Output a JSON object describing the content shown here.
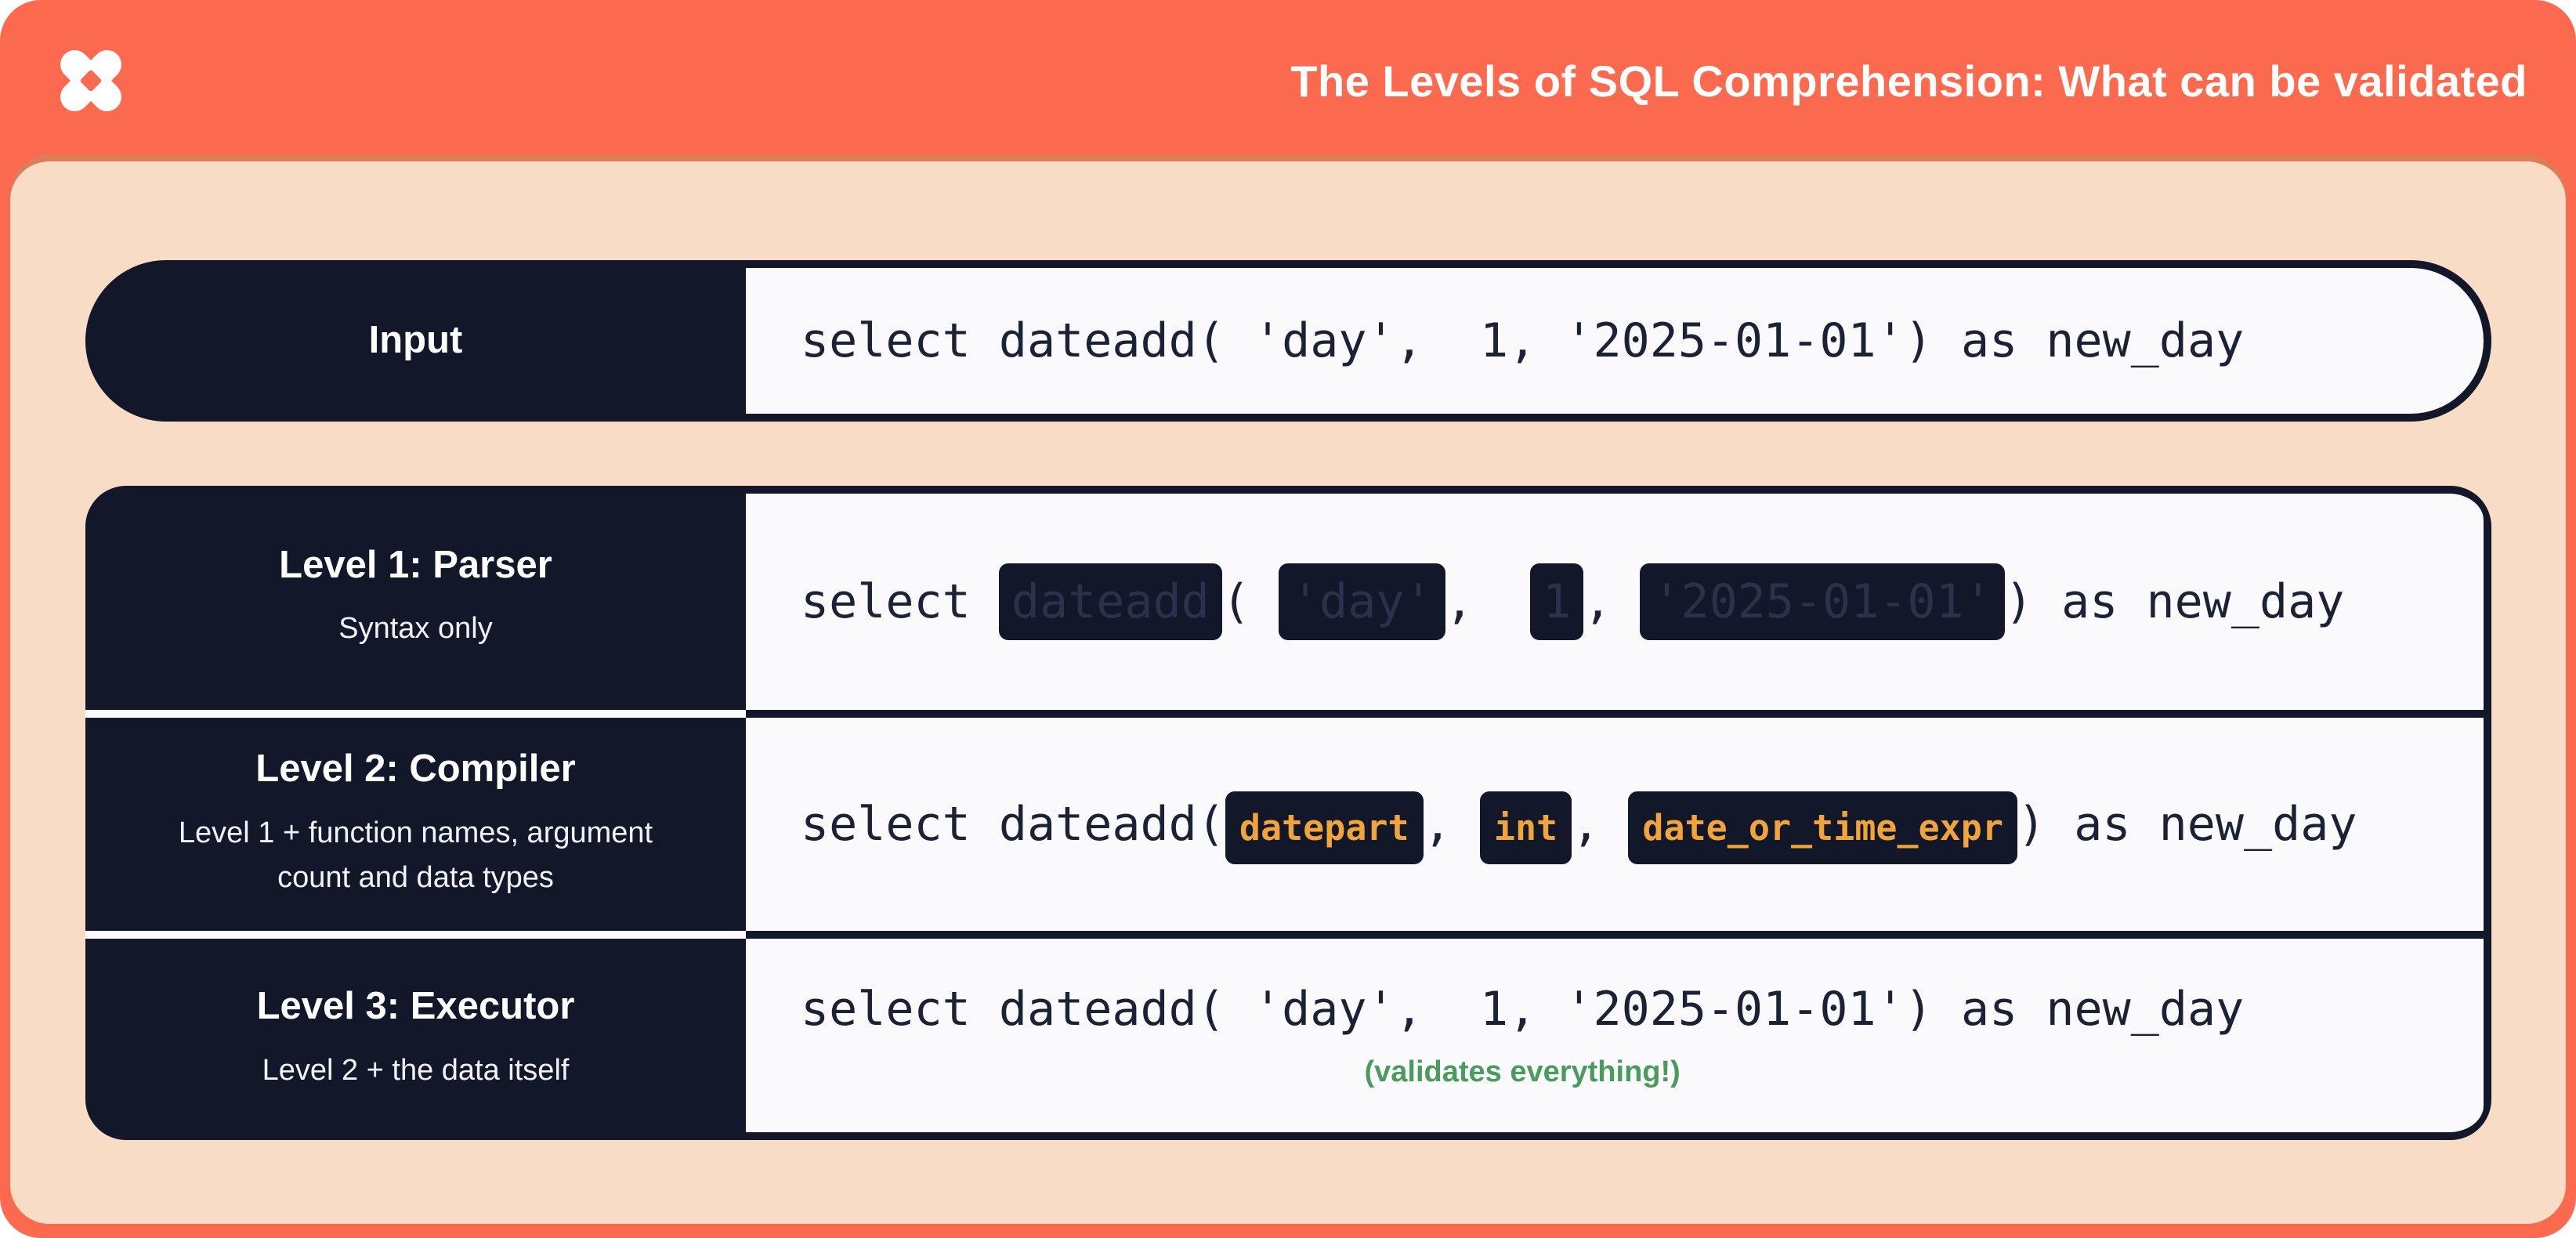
{
  "header": {
    "title": "The Levels of SQL Comprehension: What can be validated",
    "logo": "dbt-pinwheel-mark"
  },
  "colors": {
    "frame_orange": "#FB6A4F",
    "panel_peach": "#F8DCC6",
    "navy": "#121829",
    "code_background": "#FAFAFC",
    "code_text": "#1B2235",
    "token_amber": "#F1A33C",
    "caption_green": "#4B9A5E"
  },
  "input_row": {
    "label": "Input",
    "code": [
      {
        "type": "plain",
        "text": "select dateadd( 'day',  1, '2025-01-01') as new_day"
      }
    ]
  },
  "levels": [
    {
      "title": "Level 1: Parser",
      "subtitle": "Syntax only",
      "code": [
        {
          "type": "plain",
          "text": "select "
        },
        {
          "type": "redacted",
          "text": "dateadd"
        },
        {
          "type": "plain",
          "text": "( "
        },
        {
          "type": "redacted",
          "text": "'day'"
        },
        {
          "type": "plain",
          "text": ",  "
        },
        {
          "type": "redacted",
          "text": "1"
        },
        {
          "type": "plain",
          "text": ", "
        },
        {
          "type": "redacted",
          "text": "'2025-01-01'"
        },
        {
          "type": "plain",
          "text": ") as new_day"
        }
      ]
    },
    {
      "title": "Level 2: Compiler",
      "subtitle": "Level 1 + function names, argument count and data types",
      "code": [
        {
          "type": "plain",
          "text": "select dateadd("
        },
        {
          "type": "token",
          "text": "datepart"
        },
        {
          "type": "plain",
          "text": ", "
        },
        {
          "type": "token",
          "text": "int"
        },
        {
          "type": "plain",
          "text": ", "
        },
        {
          "type": "token",
          "text": "date_or_time_expr"
        },
        {
          "type": "plain",
          "text": ") as new_day"
        }
      ]
    },
    {
      "title": "Level 3: Executor",
      "subtitle": "Level 2 + the data itself",
      "code": [
        {
          "type": "plain",
          "text": "select dateadd( 'day',  1, '2025-01-01') as new_day"
        }
      ],
      "caption": "(validates everything!)"
    }
  ]
}
